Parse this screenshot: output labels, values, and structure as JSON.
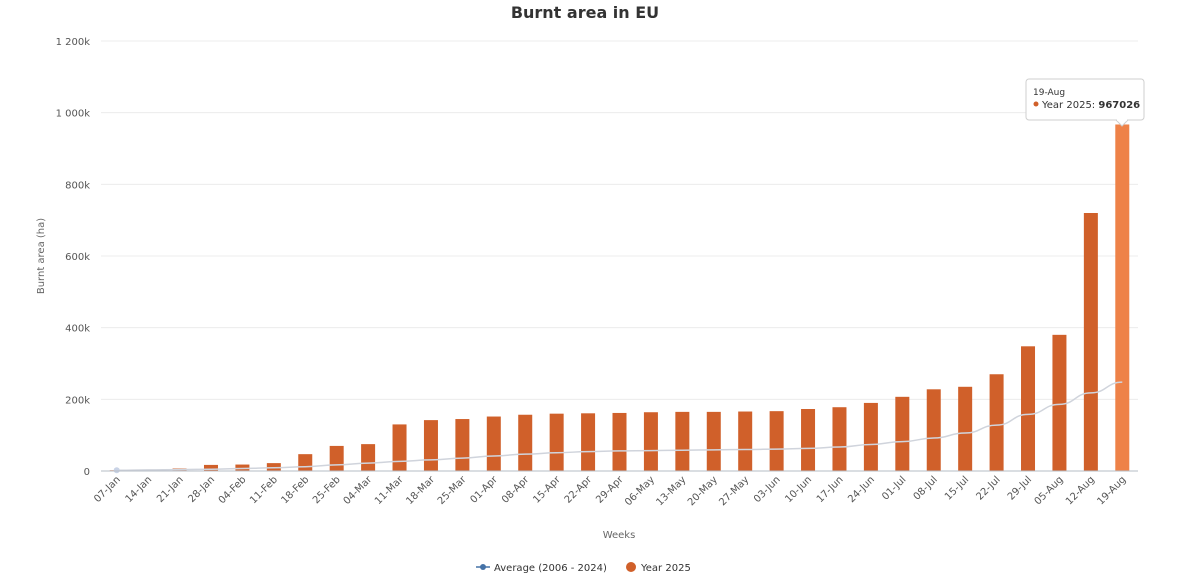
{
  "chart_data": {
    "type": "bar",
    "title": "Burnt area in EU",
    "xlabel": "Weeks",
    "ylabel": "Burnt area (ha)",
    "ylim": [
      0,
      1200000
    ],
    "yticks": [
      {
        "value": 0,
        "label": "0"
      },
      {
        "value": 200000,
        "label": "200k"
      },
      {
        "value": 400000,
        "label": "400k"
      },
      {
        "value": 600000,
        "label": "600k"
      },
      {
        "value": 800000,
        "label": "800k"
      },
      {
        "value": 1000000,
        "label": "1 000k"
      },
      {
        "value": 1200000,
        "label": "1 200k"
      }
    ],
    "categories": [
      "07-Jan",
      "14-Jan",
      "21-Jan",
      "28-Jan",
      "04-Feb",
      "11-Feb",
      "18-Feb",
      "25-Feb",
      "04-Mar",
      "11-Mar",
      "18-Mar",
      "25-Mar",
      "01-Apr",
      "08-Apr",
      "15-Apr",
      "22-Apr",
      "29-Apr",
      "06-May",
      "13-May",
      "20-May",
      "27-May",
      "03-Jun",
      "10-Jun",
      "17-Jun",
      "24-Jun",
      "01-Jul",
      "08-Jul",
      "15-Jul",
      "22-Jul",
      "29-Jul",
      "05-Aug",
      "12-Aug",
      "19-Aug"
    ],
    "grid": true,
    "legend_position": "bottom-center",
    "series": [
      {
        "name": "Average (2006 - 2024)",
        "type": "line",
        "color": "#4572a7",
        "line_color": "#d0d4dc",
        "values": [
          2000,
          3000,
          4000,
          5000,
          7000,
          9000,
          12000,
          17000,
          22000,
          27000,
          31000,
          36000,
          42000,
          47000,
          51000,
          54000,
          56000,
          57000,
          58000,
          59000,
          60000,
          61000,
          63000,
          67000,
          74000,
          82000,
          92000,
          106000,
          128000,
          158000,
          186000,
          218000,
          248000
        ]
      },
      {
        "name": "Year 2025",
        "type": "bar",
        "color": "#d0602a",
        "highlight_color": "#ee8248",
        "values": [
          2000,
          3000,
          7000,
          17000,
          18000,
          22000,
          47000,
          70000,
          75000,
          130000,
          142000,
          145000,
          152000,
          157000,
          160000,
          161000,
          162000,
          164000,
          165000,
          165000,
          166000,
          167000,
          173000,
          178000,
          190000,
          207000,
          228000,
          235000,
          270000,
          348000,
          380000,
          720000,
          967026
        ]
      }
    ],
    "tooltip": {
      "date": "19-Aug",
      "series_label": "Year 2025: ",
      "value": "967026"
    }
  }
}
